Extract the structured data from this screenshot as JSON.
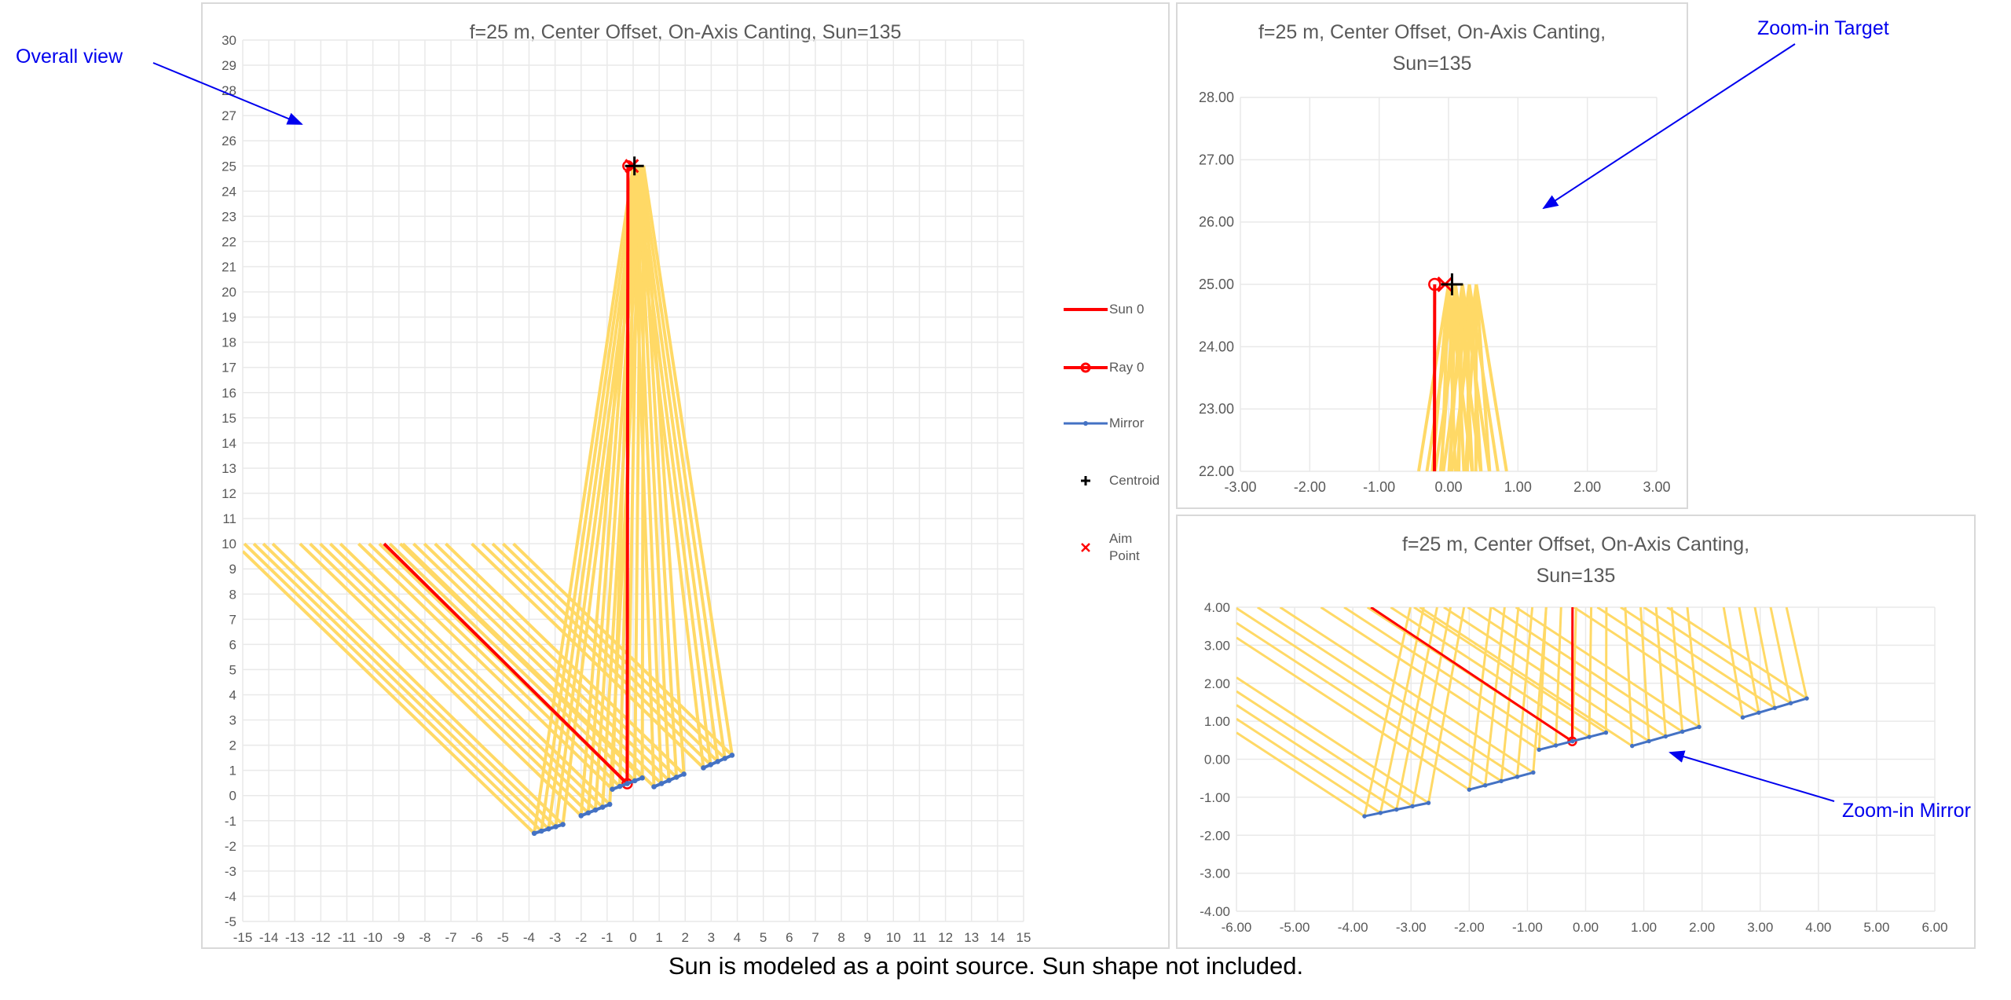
{
  "annotations": {
    "overall": "Overall view",
    "target": "Zoom-in Target",
    "mirror": "Zoom-in Mirror"
  },
  "caption": "Sun is modeled as a point source.  Sun shape not included.",
  "legend": {
    "sun": "Sun 0",
    "ray": "Ray 0",
    "mirror": "Mirror",
    "centroid": "Centroid",
    "aim": "Aim Point"
  },
  "colors": {
    "rays": "#FFD966",
    "sun0": "#FF0000",
    "mirror": "#4472C4",
    "centroid": "#000000",
    "aim": "#FF0000",
    "grid": "#E9E9E9",
    "annotation": "#0000EE"
  },
  "chart_data": [
    {
      "id": "overall",
      "type": "line",
      "title": "f=25 m, Center Offset, On-Axis Canting, Sun=135",
      "xlim": [
        -15,
        15
      ],
      "ylim": [
        -5,
        30
      ],
      "xstep": 1,
      "ystep": 1,
      "decimals": 0,
      "grid": true,
      "legend": "right"
    },
    {
      "id": "target",
      "type": "line",
      "title": "f=25 m, Center Offset, On-Axis Canting, Sun=135",
      "xlim": [
        -3,
        3
      ],
      "ylim": [
        22,
        28
      ],
      "xstep": 1,
      "ystep": 1,
      "decimals": 2,
      "grid": true,
      "legend": "none"
    },
    {
      "id": "mirror",
      "type": "line",
      "title": "f=25 m, Center Offset, On-Axis Canting, Sun=135",
      "xlim": [
        -6,
        6
      ],
      "ylim": [
        -4,
        4
      ],
      "xstep": 1,
      "ystep": 1,
      "decimals": 2,
      "grid": true,
      "legend": "none"
    }
  ],
  "series": {
    "sun_height": 10,
    "incident_direction": [
      1,
      -1
    ],
    "target_height": 25,
    "mirror_facets": [
      {
        "x": [
          -3.8,
          -2.7
        ],
        "y": [
          -1.5,
          -1.15
        ]
      },
      {
        "x": [
          -2.0,
          -0.9
        ],
        "y": [
          -0.8,
          -0.35
        ]
      },
      {
        "x": [
          -0.8,
          0.35
        ],
        "y": [
          0.25,
          0.7
        ]
      },
      {
        "x": [
          0.8,
          1.95
        ],
        "y": [
          0.35,
          0.85
        ]
      },
      {
        "x": [
          2.7,
          3.8
        ],
        "y": [
          1.1,
          1.6
        ]
      }
    ],
    "points_per_facet": 5,
    "reflected_target_x": [
      0.0,
      0.1,
      0.2,
      0.3,
      0.4
    ],
    "sun0": [
      [
        -9.57,
        10
      ],
      [
        -0.23,
        0.47
      ]
    ],
    "ray0": [
      [
        -0.23,
        0.47
      ],
      [
        -0.2,
        25
      ]
    ],
    "centroid": [
      0.05,
      25
    ],
    "aim_point": [
      -0.05,
      25
    ]
  }
}
